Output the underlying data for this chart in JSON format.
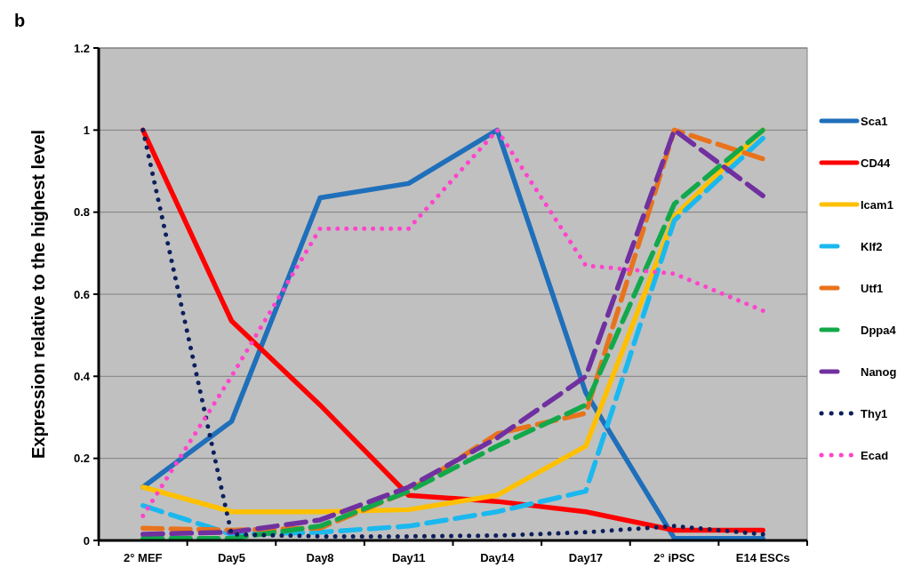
{
  "chart_data": {
    "type": "line",
    "ylabel": "Expression relative to the highest level",
    "annotations": [
      "b"
    ],
    "categories": [
      "2° MEF",
      "Day5",
      "Day8",
      "Day11",
      "Day14",
      "Day17",
      "2° iPSC",
      "E14 ESCs"
    ],
    "ylim": [
      0,
      1.2
    ],
    "yticks": [
      0,
      0.2,
      0.4,
      0.6,
      0.8,
      1,
      1.2
    ],
    "grid": "y",
    "legend": "right",
    "marker": "none",
    "series": [
      {
        "name": "Sca1",
        "color": "#1f6fba",
        "line_style": "solid",
        "values": [
          0.13,
          0.29,
          0.835,
          0.87,
          1,
          0.36,
          0.005,
          0.005
        ]
      },
      {
        "name": "CD44",
        "color": "#ff0000",
        "line_style": "solid",
        "values": [
          1,
          0.535,
          0.33,
          0.11,
          0.095,
          0.07,
          0.025,
          0.025
        ]
      },
      {
        "name": "Icam1",
        "color": "#ffc000",
        "line_style": "solid",
        "values": [
          0.13,
          0.07,
          0.07,
          0.075,
          0.11,
          0.23,
          0.79,
          1
        ]
      },
      {
        "name": "Klf2",
        "color": "#1ab8ef",
        "line_style": "dashed",
        "values": [
          0.085,
          0.015,
          0.02,
          0.035,
          0.07,
          0.12,
          0.78,
          0.98
        ]
      },
      {
        "name": "Utf1",
        "color": "#e8731c",
        "line_style": "dashed",
        "values": [
          0.03,
          0.025,
          0.03,
          0.12,
          0.26,
          0.31,
          1,
          0.93
        ]
      },
      {
        "name": "Dppa4",
        "color": "#13a84a",
        "line_style": "dashed",
        "values": [
          0.005,
          0.005,
          0.035,
          0.12,
          0.23,
          0.33,
          0.82,
          1
        ]
      },
      {
        "name": "Nanog",
        "color": "#7030a0",
        "line_style": "dashed",
        "values": [
          0.015,
          0.02,
          0.05,
          0.13,
          0.25,
          0.4,
          1,
          0.84
        ]
      },
      {
        "name": "Thy1",
        "color": "#0d1f5c",
        "line_style": "dotted",
        "values": [
          1,
          0.015,
          0.01,
          0.01,
          0.012,
          0.02,
          0.035,
          0.015
        ]
      },
      {
        "name": "Ecad",
        "color": "#ff44cc",
        "line_style": "dotted",
        "values": [
          0.06,
          0.4,
          0.76,
          0.76,
          1,
          0.67,
          0.65,
          0.56
        ]
      }
    ]
  }
}
